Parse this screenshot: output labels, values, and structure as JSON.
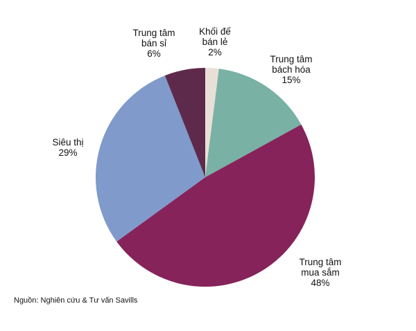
{
  "chart_data": {
    "type": "pie",
    "categories": [
      "Khối đế bán lẻ",
      "Trung tâm bách hóa",
      "Trung tâm mua sắm",
      "Siêu thị",
      "Trung tâm bán sỉ"
    ],
    "values": [
      2,
      15,
      48,
      29,
      6
    ],
    "value_labels": [
      "2%",
      "15%",
      "48%",
      "29%",
      "6%"
    ],
    "colors": [
      "#e8e0d6",
      "#79b1a5",
      "#86235b",
      "#7f9acb",
      "#5e2a4b"
    ],
    "source": "Nguồn: Nghiên cứu & Tư vấn Savills"
  }
}
